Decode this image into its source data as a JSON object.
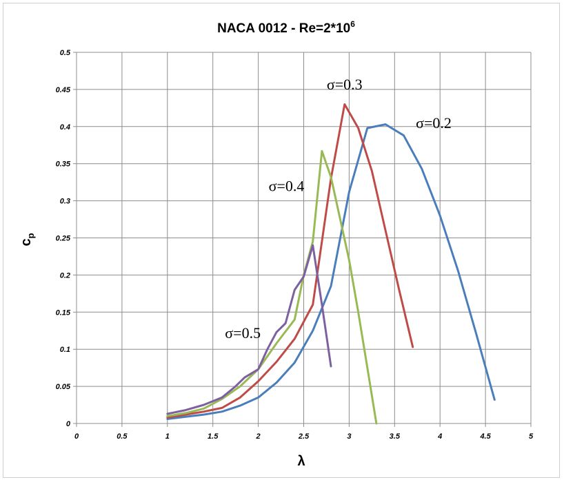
{
  "chart_data": {
    "type": "line",
    "title_main": "NACA 0012 - Re=2*10",
    "title_sup": "6",
    "xlabel": "λ",
    "ylabel_main": "c",
    "ylabel_sub": "p",
    "xlim": [
      0,
      5
    ],
    "ylim": [
      0,
      0.5
    ],
    "x_ticks": [
      "0",
      "0.5",
      "1",
      "1.5",
      "2",
      "2.5",
      "3",
      "3.5",
      "4",
      "4.5",
      "5"
    ],
    "y_ticks": [
      "0",
      "0.05",
      "0.1",
      "0.15",
      "0.2",
      "0.25",
      "0.3",
      "0.35",
      "0.4",
      "0.45",
      "0.5"
    ],
    "grid": true,
    "series": [
      {
        "name": "σ=0.2",
        "color": "#4a7ebb",
        "x": [
          1.0,
          1.2,
          1.4,
          1.6,
          1.8,
          2.0,
          2.2,
          2.4,
          2.6,
          2.8,
          3.0,
          3.2,
          3.4,
          3.6,
          3.8,
          4.0,
          4.2,
          4.4,
          4.6
        ],
        "y": [
          0.006,
          0.009,
          0.012,
          0.016,
          0.024,
          0.035,
          0.055,
          0.082,
          0.125,
          0.185,
          0.312,
          0.398,
          0.403,
          0.388,
          0.343,
          0.28,
          0.205,
          0.12,
          0.032
        ]
      },
      {
        "name": "σ=0.3",
        "color": "#be4b48",
        "x": [
          1.0,
          1.2,
          1.4,
          1.6,
          1.8,
          2.0,
          2.2,
          2.4,
          2.6,
          2.8,
          2.95,
          3.1,
          3.25,
          3.4,
          3.55,
          3.7
        ],
        "y": [
          0.008,
          0.012,
          0.016,
          0.021,
          0.035,
          0.057,
          0.083,
          0.114,
          0.16,
          0.33,
          0.43,
          0.398,
          0.34,
          0.26,
          0.18,
          0.103
        ]
      },
      {
        "name": "σ=0.4",
        "color": "#98b954",
        "x": [
          1.0,
          1.2,
          1.4,
          1.6,
          1.8,
          2.0,
          2.2,
          2.4,
          2.5,
          2.6,
          2.7,
          2.8,
          3.0,
          3.1,
          3.2,
          3.3
        ],
        "y": [
          0.01,
          0.014,
          0.02,
          0.033,
          0.05,
          0.073,
          0.108,
          0.14,
          0.2,
          0.245,
          0.367,
          0.332,
          0.22,
          0.15,
          0.075,
          0.0
        ]
      },
      {
        "name": "σ=0.5",
        "color": "#7d60a0",
        "x": [
          1.0,
          1.2,
          1.4,
          1.6,
          1.75,
          1.85,
          2.0,
          2.1,
          2.2,
          2.3,
          2.4,
          2.5,
          2.6,
          2.7,
          2.8
        ],
        "y": [
          0.013,
          0.018,
          0.025,
          0.035,
          0.05,
          0.062,
          0.073,
          0.1,
          0.123,
          0.135,
          0.18,
          0.198,
          0.24,
          0.16,
          0.077
        ]
      }
    ],
    "annotations": [
      {
        "text": "σ=0.3",
        "x": 2.95,
        "y": 0.45
      },
      {
        "text": "σ=0.2",
        "x": 3.93,
        "y": 0.398
      },
      {
        "text": "σ=0.4",
        "x": 2.31,
        "y": 0.313
      },
      {
        "text": "σ=0.5",
        "x": 1.83,
        "y": 0.115
      }
    ]
  }
}
